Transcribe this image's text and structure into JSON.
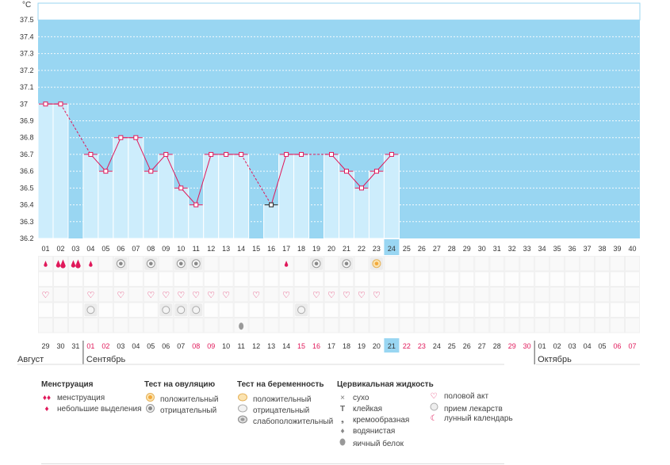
{
  "chart_data": {
    "type": "line",
    "y_unit": "°C",
    "ylim": [
      36.2,
      37.6
    ],
    "y_ticks": [
      "37.5",
      "37.4",
      "37.3",
      "37.2",
      "37.1",
      "37",
      "36.9",
      "36.8",
      "36.7",
      "36.6",
      "36.5",
      "36.4",
      "36.3",
      "36.2"
    ],
    "cycle_days": [
      "01",
      "02",
      "03",
      "04",
      "05",
      "06",
      "07",
      "08",
      "09",
      "10",
      "11",
      "12",
      "13",
      "14",
      "15",
      "16",
      "17",
      "18",
      "19",
      "20",
      "21",
      "22",
      "23",
      "24",
      "25",
      "26",
      "27",
      "28",
      "29",
      "30",
      "31",
      "32",
      "33",
      "34",
      "35",
      "36",
      "37",
      "38",
      "39",
      "40"
    ],
    "current_cycle_day": "24",
    "temperatures": [
      37.0,
      37.0,
      null,
      36.7,
      36.6,
      36.8,
      36.8,
      36.6,
      36.7,
      36.5,
      36.4,
      36.7,
      36.7,
      36.7,
      null,
      36.4,
      36.7,
      36.7,
      null,
      36.7,
      36.6,
      36.5,
      36.6,
      36.7
    ],
    "highlight_point_day": "16",
    "calendar_dates": [
      "29",
      "30",
      "31",
      "01",
      "02",
      "03",
      "04",
      "05",
      "06",
      "07",
      "08",
      "09",
      "10",
      "11",
      "12",
      "13",
      "14",
      "15",
      "16",
      "17",
      "18",
      "19",
      "20",
      "21",
      "22",
      "23",
      "24",
      "25",
      "26",
      "27",
      "28",
      "29",
      "30",
      "01",
      "02",
      "03",
      "04",
      "05",
      "06",
      "07"
    ],
    "weekend_indices": [
      3,
      4,
      10,
      11,
      17,
      18,
      24,
      25,
      31,
      32,
      38,
      39
    ],
    "current_date_index": 23,
    "month_labels": [
      {
        "label": "Август",
        "start_index": 0
      },
      {
        "label": "Сентябрь",
        "start_index": 3
      },
      {
        "label": "Октябрь",
        "start_index": 33
      }
    ],
    "menstruation": {
      "1": "small",
      "2": "heavy",
      "3": "heavy",
      "4": "small",
      "17": "small"
    },
    "ovulation_test": {
      "6": "negative",
      "8": "negative",
      "10": "negative",
      "11": "negative",
      "19": "negative",
      "21": "negative",
      "23": "positive"
    },
    "intercourse_days": [
      1,
      4,
      6,
      8,
      9,
      10,
      11,
      12,
      13,
      15,
      17,
      19,
      20,
      21,
      22,
      23
    ],
    "medication_days": [
      4,
      9,
      10,
      11,
      18
    ],
    "cervical_fluid": {
      "14": "egg-white"
    }
  },
  "legend": {
    "menstruation": {
      "title": "Менструация",
      "items": [
        {
          "icon": "menstruation-icon",
          "label": "менструация"
        },
        {
          "icon": "small-discharge-icon",
          "label": "небольшие выделения"
        }
      ]
    },
    "ovulation": {
      "title": "Тест на овуляцию",
      "items": [
        {
          "icon": "ovulation-positive-icon",
          "label": "положительный"
        },
        {
          "icon": "ovulation-negative-icon",
          "label": "отрицательный"
        }
      ]
    },
    "pregnancy": {
      "title": "Тест на беременность",
      "items": [
        {
          "icon": "pregnancy-positive-icon",
          "label": "положительный"
        },
        {
          "icon": "pregnancy-negative-icon",
          "label": "отрицательный"
        },
        {
          "icon": "pregnancy-weak-icon",
          "label": "слабоположительный"
        }
      ]
    },
    "cervical": {
      "title": "Цервикальная жидкость",
      "items": [
        {
          "icon": "dry-icon",
          "label": "сухо"
        },
        {
          "icon": "sticky-icon",
          "label": "клейкая"
        },
        {
          "icon": "creamy-icon",
          "label": "кремообразная"
        },
        {
          "icon": "watery-icon",
          "label": "водянистая"
        },
        {
          "icon": "egg-white-icon",
          "label": "яичный белок"
        }
      ]
    },
    "other": {
      "items": [
        {
          "icon": "heart-icon",
          "label": "половой акт"
        },
        {
          "icon": "pill-icon",
          "label": "прием лекарств"
        },
        {
          "icon": "moon-icon",
          "label": "лунный календарь"
        }
      ]
    }
  },
  "colors": {
    "plot_bg": "#99d6f2",
    "bar": "#cdedfc",
    "line": "#e0185a",
    "pink": "#e0185a",
    "today": "#99d6f2",
    "grid": "#ffffff"
  }
}
